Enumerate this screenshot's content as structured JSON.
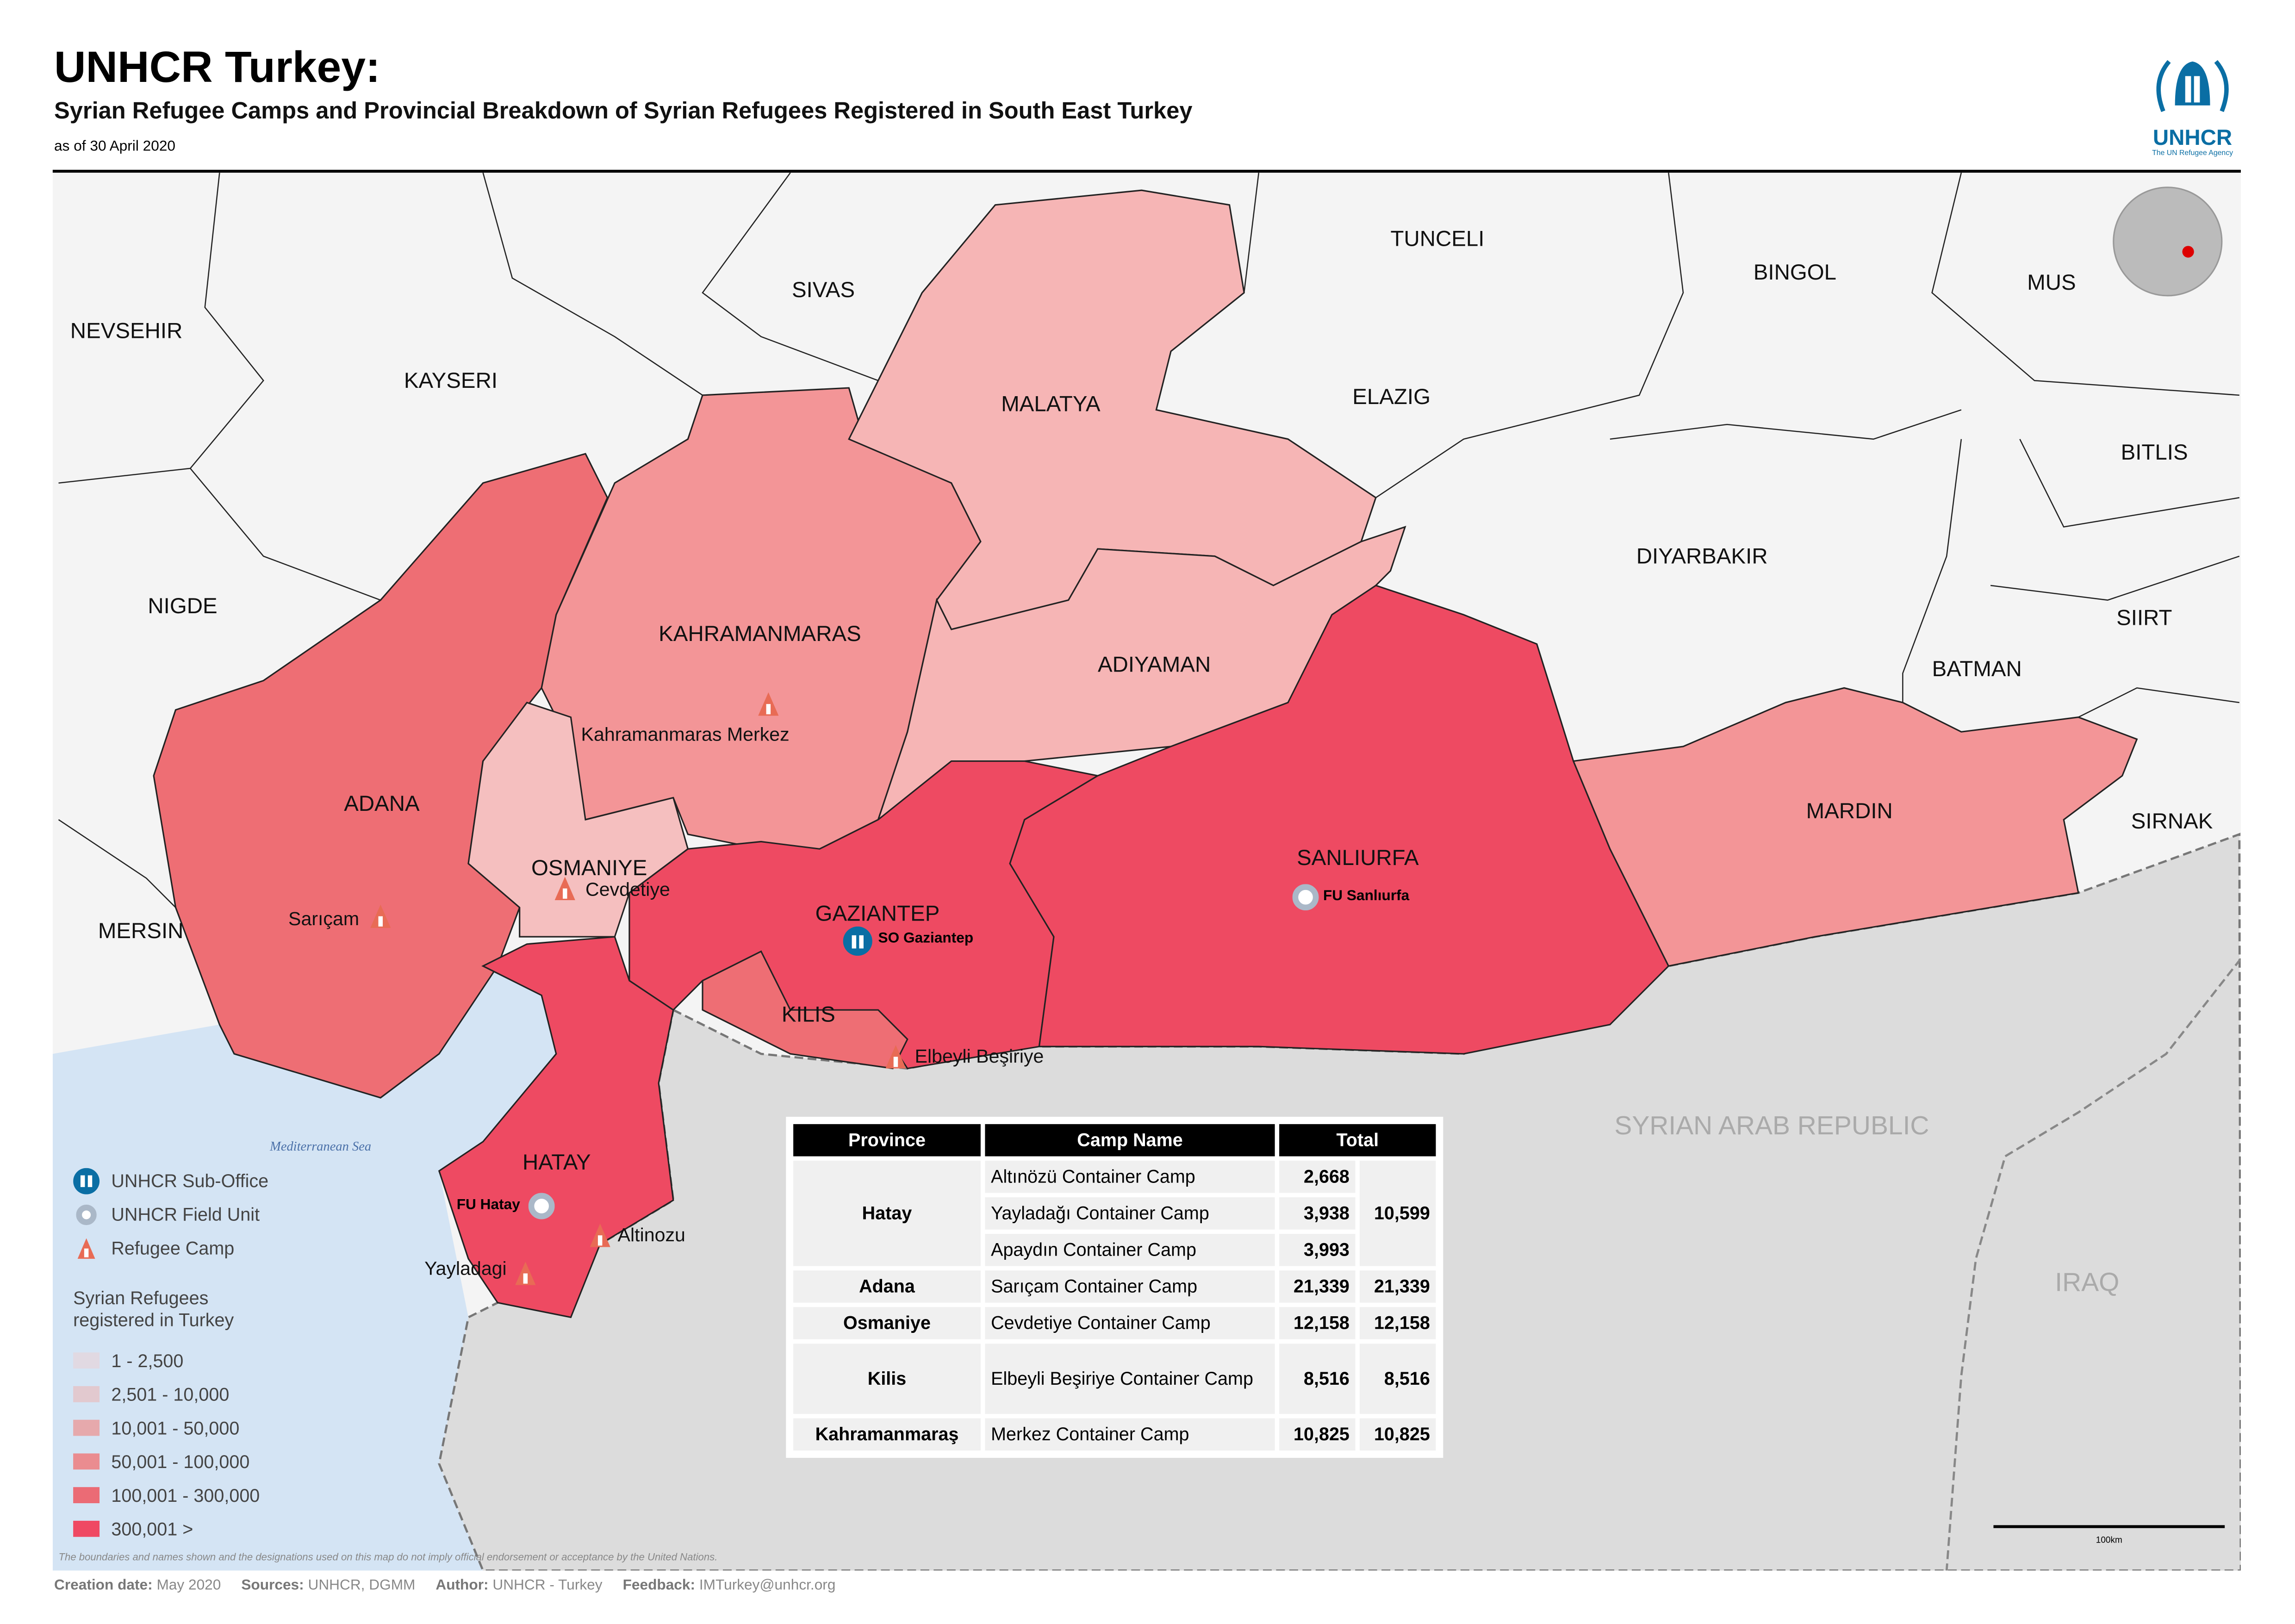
{
  "header": {
    "title": "UNHCR Turkey:",
    "subtitle": "Syrian Refugee Camps and Provincial Breakdown of Syrian Refugees Registered in South East Turkey",
    "as_of": "as of 30 April 2020"
  },
  "logo": {
    "text": "UNHCR",
    "tagline": "The UN Refugee Agency",
    "color": "#0a6ea4"
  },
  "map": {
    "provinces": [
      {
        "name": "NEVSEHIR"
      },
      {
        "name": "KAYSERI"
      },
      {
        "name": "SIVAS"
      },
      {
        "name": "TUNCELI"
      },
      {
        "name": "BINGOL"
      },
      {
        "name": "MUS"
      },
      {
        "name": "MALATYA"
      },
      {
        "name": "ELAZIG"
      },
      {
        "name": "BITLIS"
      },
      {
        "name": "NIGDE"
      },
      {
        "name": "KAHRAMANMARAS"
      },
      {
        "name": "DIYARBAKIR"
      },
      {
        "name": "SIIRT"
      },
      {
        "name": "ADIYAMAN"
      },
      {
        "name": "BATMAN"
      },
      {
        "name": "ADANA"
      },
      {
        "name": "MARDIN"
      },
      {
        "name": "SIRNAK"
      },
      {
        "name": "SANLIURFA"
      },
      {
        "name": "OSMANIYE"
      },
      {
        "name": "MERSIN"
      },
      {
        "name": "GAZIANTEP"
      },
      {
        "name": "KILIS"
      },
      {
        "name": "HATAY"
      }
    ],
    "countries": {
      "syria": "SYRIAN ARAB REPUBLIC",
      "iraq": "IRAQ"
    },
    "sea": "Mediterranean Sea",
    "camps": [
      "Kahramanmaras Merkez",
      "Cevdetiye",
      "Sarıçam",
      "Elbeyli Beşiriye",
      "Altinozu",
      "Yayladagi"
    ],
    "offices": {
      "sub_office": "SO Gaziantep",
      "field_units": [
        "FU Sanlıurfa",
        "FU Hatay"
      ]
    },
    "scale_label": "100km"
  },
  "legend": {
    "symbols": [
      {
        "icon": "unhcr-sub-office-icon",
        "label": "UNHCR Sub-Office"
      },
      {
        "icon": "field-unit-icon",
        "label": "UNHCR Field Unit"
      },
      {
        "icon": "refugee-camp-icon",
        "label": "Refugee Camp"
      }
    ],
    "title": "Syrian Refugees registered in Turkey",
    "classes": [
      {
        "label": "1 - 2,500",
        "color": "#e1d9e2"
      },
      {
        "label": "2,501 - 10,000",
        "color": "#e2c9cf"
      },
      {
        "label": "10,001 - 50,000",
        "color": "#e6a9ac"
      },
      {
        "label": "50,001 - 100,000",
        "color": "#ea8c90"
      },
      {
        "label": "100,001 - 300,000",
        "color": "#eb6b75"
      },
      {
        "label": "300,001 >",
        "color": "#ef4963"
      }
    ]
  },
  "table": {
    "headers": [
      "Province",
      "Camp Name",
      "Total"
    ],
    "rows": [
      {
        "province": "Hatay",
        "camps": [
          {
            "name": "Altınözü Container Camp",
            "count": "2,668"
          },
          {
            "name": "Yayladağı Container Camp",
            "count": "3,938"
          },
          {
            "name": "Apaydın Container Camp",
            "count": "3,993"
          }
        ],
        "total": "10,599"
      },
      {
        "province": "Adana",
        "camps": [
          {
            "name": "Sarıçam Container Camp",
            "count": "21,339"
          }
        ],
        "total": "21,339"
      },
      {
        "province": "Osmaniye",
        "camps": [
          {
            "name": "Cevdetiye Container Camp",
            "count": "12,158"
          }
        ],
        "total": "12,158"
      },
      {
        "province": "Kilis",
        "camps": [
          {
            "name": "Elbeyli Beşiriye Container Camp",
            "count": "8,516"
          }
        ],
        "total": "8,516"
      },
      {
        "province": "Kahramanmaraş",
        "camps": [
          {
            "name": "Merkez Container Camp",
            "count": "10,825"
          }
        ],
        "total": "10,825"
      }
    ]
  },
  "disclaimer": "The boundaries and names shown and the designations used on this map do not imply official endorsement or acceptance by the United Nations.",
  "footer": {
    "creation_label": "Creation date:",
    "creation": "May 2020",
    "sources_label": "Sources:",
    "sources": "UNHCR, DGMM",
    "author_label": "Author:",
    "author": "UNHCR - Turkey",
    "feedback_label": "Feedback:",
    "feedback": "IMTurkey@unhcr.org"
  }
}
